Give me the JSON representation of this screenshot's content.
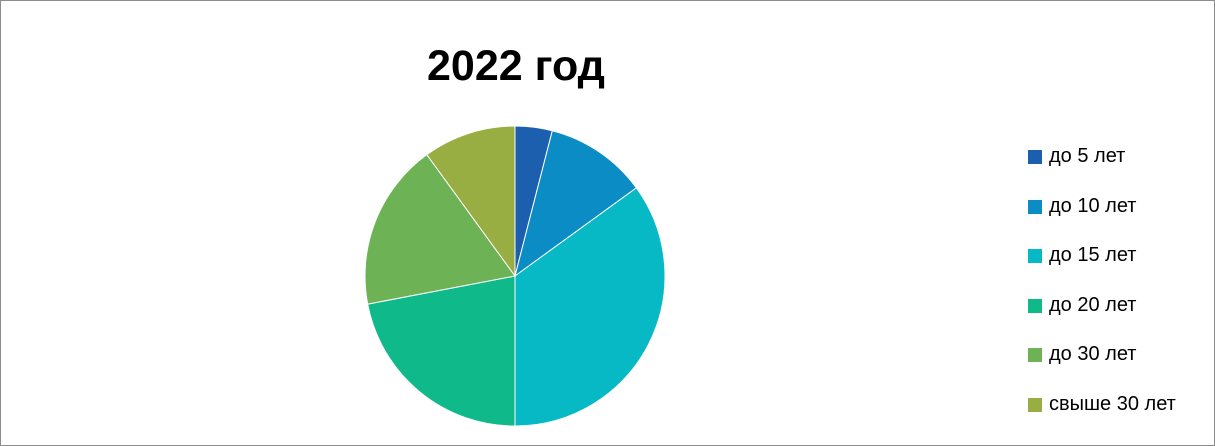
{
  "chart_data": {
    "type": "pie",
    "title": "2022 год",
    "categories": [
      "до 5 лет",
      "до 10 лет",
      "до 15 лет",
      "до 20 лет",
      "до 30 лет",
      "свыше 30 лет"
    ],
    "values": [
      4,
      11,
      35,
      22,
      18,
      10
    ],
    "unit": "%",
    "start_angle_deg": 0,
    "direction": "clockwise",
    "colors": [
      "#1b5fae",
      "#0b8cc4",
      "#07b9c4",
      "#10b98a",
      "#6db356",
      "#98ad42"
    ],
    "legend_position": "right"
  }
}
